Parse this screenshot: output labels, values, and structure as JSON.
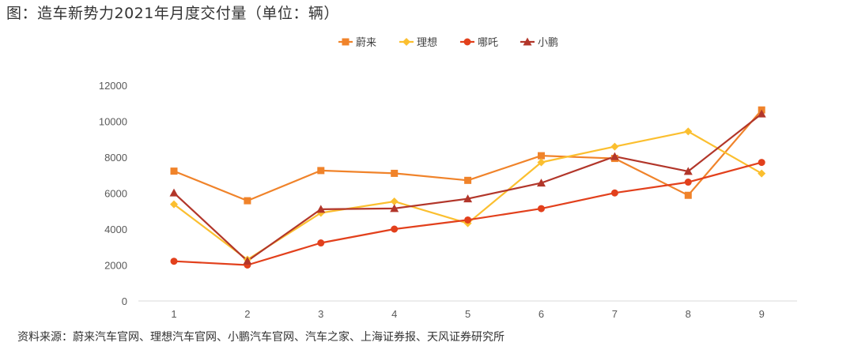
{
  "page": {
    "title": "图：造车新势力2021年月度交付量（单位：辆）",
    "source": "资料来源：蔚来汽车官网、理想汽车官网、小鹏汽车官网、汽车之家、上海证券报、天风证券研究所"
  },
  "chart_data": {
    "type": "line",
    "title": "图：造车新势力2021年月度交付量（单位：辆）",
    "xlabel": "",
    "ylabel": "",
    "x": [
      "1",
      "2",
      "3",
      "4",
      "5",
      "6",
      "7",
      "8",
      "9"
    ],
    "ylim": [
      0,
      12000
    ],
    "yticks": [
      "0",
      "2000",
      "4000",
      "6000",
      "8000",
      "10000",
      "12000"
    ],
    "grid": false,
    "legend_position": "top",
    "series": [
      {
        "name": "蔚来",
        "color": "#f0832a",
        "marker": "square",
        "values": [
          7225,
          5578,
          7257,
          7102,
          6711,
          8083,
          7931,
          5880,
          10628
        ]
      },
      {
        "name": "理想",
        "color": "#fbbf2f",
        "marker": "diamond",
        "values": [
          5379,
          2300,
          4900,
          5539,
          4323,
          7713,
          8589,
          9433,
          7094
        ]
      },
      {
        "name": "哪吒",
        "color": "#e2401c",
        "marker": "circle",
        "values": [
          2210,
          2000,
          3230,
          4000,
          4508,
          5138,
          6011,
          6613,
          7710
        ]
      },
      {
        "name": "小鹏",
        "color": "#b2362a",
        "marker": "triangle",
        "values": [
          6015,
          2223,
          5102,
          5147,
          5686,
          6565,
          8040,
          7214,
          10412
        ]
      }
    ]
  }
}
